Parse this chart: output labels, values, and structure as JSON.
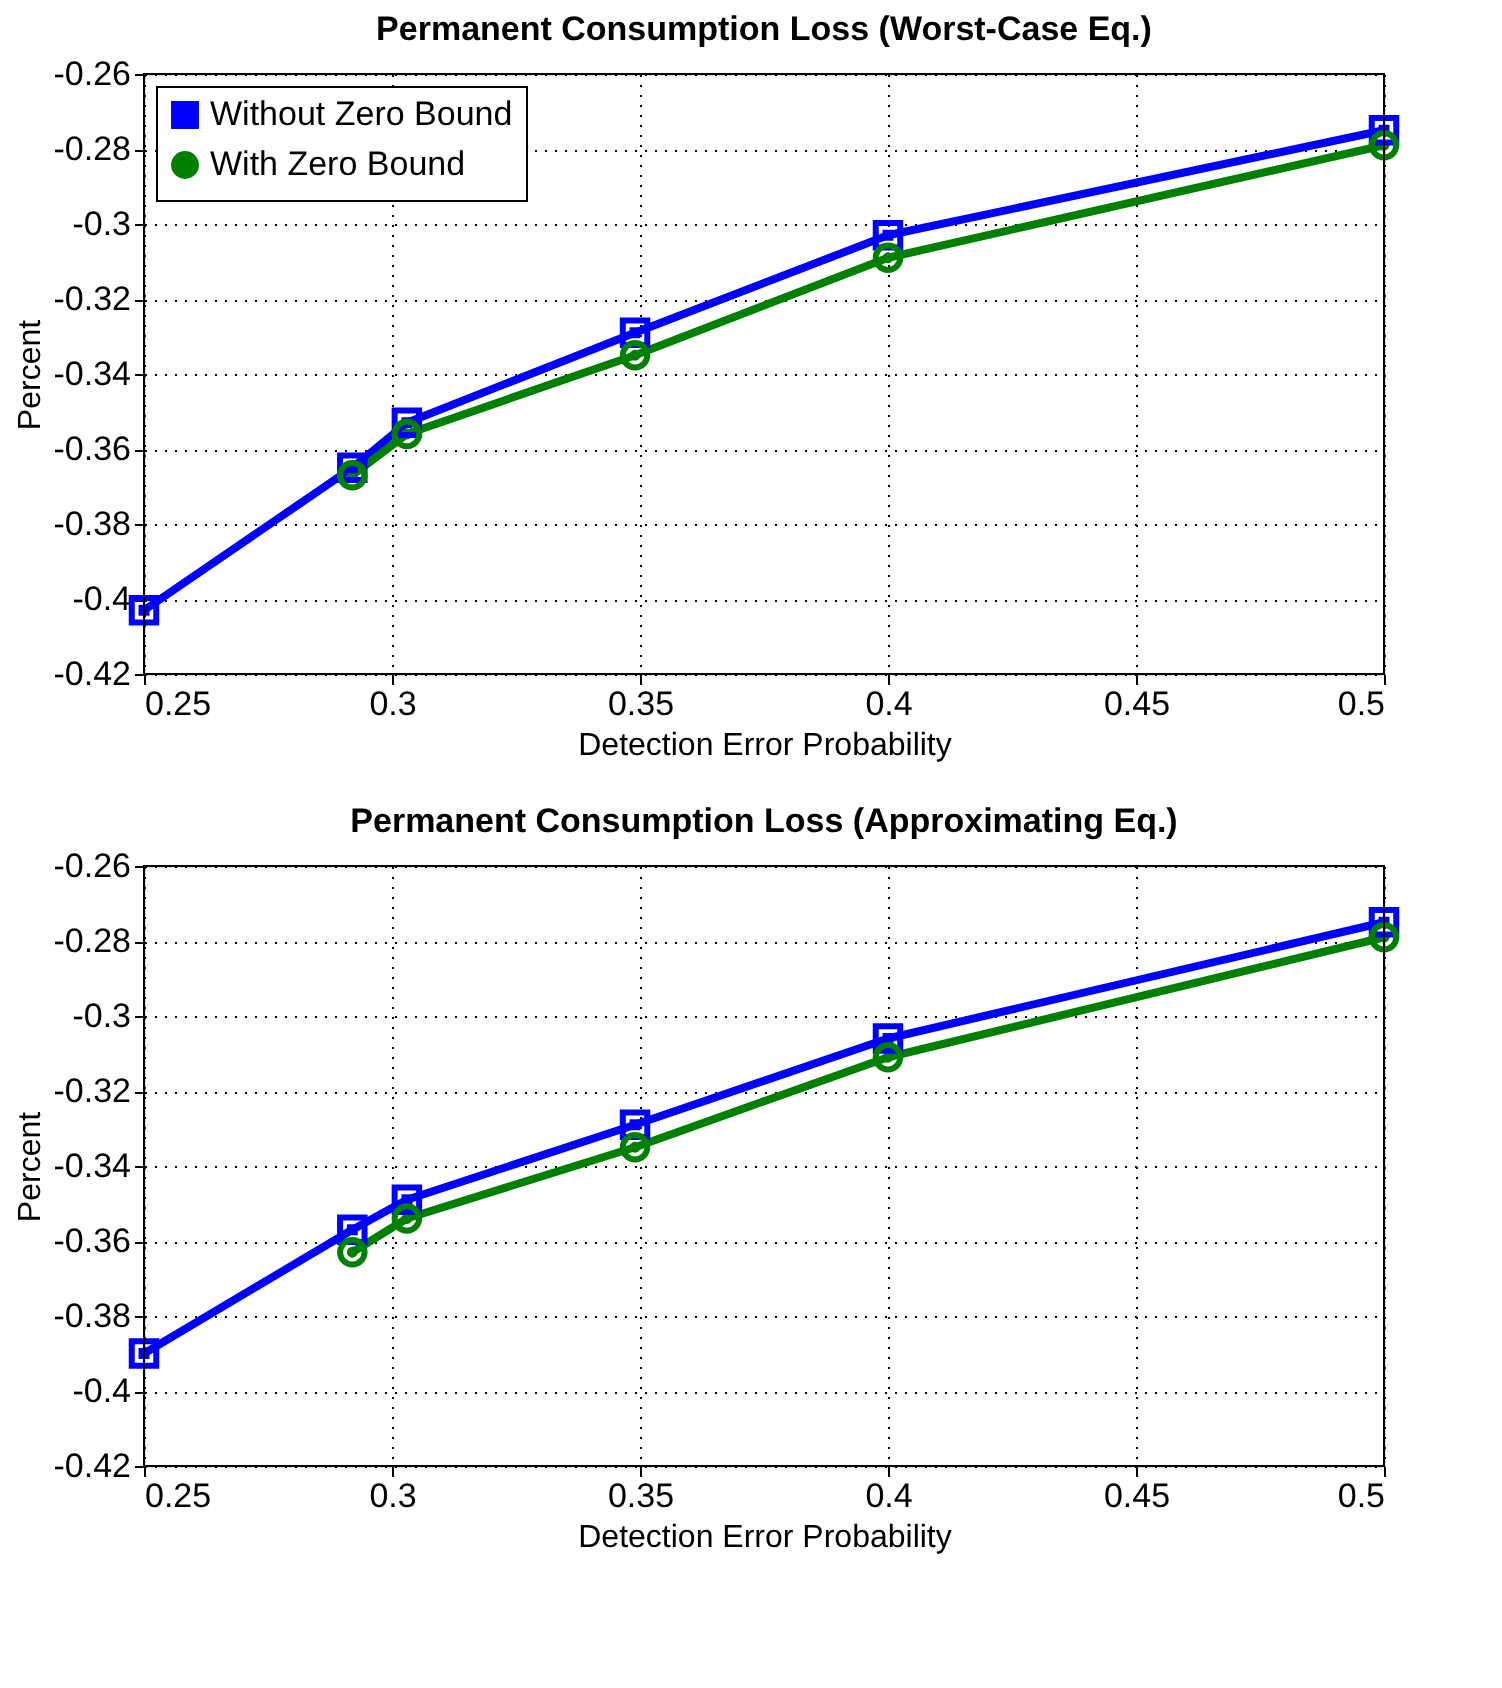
{
  "chart_data": [
    {
      "type": "line",
      "title": "Permanent Consumption Loss (Worst-Case Eq.)",
      "xlabel": "Detection Error Probability",
      "ylabel": "Percent",
      "xlim": [
        0.25,
        0.5
      ],
      "xticks": [
        0.25,
        0.3,
        0.35,
        0.4,
        0.45,
        0.5
      ],
      "ylim": [
        -0.42,
        -0.26
      ],
      "yticks": [
        -0.42,
        -0.4,
        -0.38,
        -0.36,
        -0.34,
        -0.32,
        -0.3,
        -0.28,
        -0.26
      ],
      "grid": true,
      "line_style": "solid",
      "legend": "top left",
      "series": [
        {
          "name": "Without Zero Bound",
          "color": "#0000ff",
          "marker": "square",
          "x": [
            0.25,
            0.292,
            0.303,
            0.349,
            0.4,
            0.5
          ],
          "values": [
            -0.403,
            -0.365,
            -0.353,
            -0.329,
            -0.303,
            -0.275
          ]
        },
        {
          "name": "With Zero Bound",
          "color": "#008000",
          "marker": "circle",
          "x": [
            0.292,
            0.303,
            0.349,
            0.4,
            0.5
          ],
          "values": [
            -0.367,
            -0.356,
            -0.335,
            -0.309,
            -0.279
          ]
        }
      ]
    },
    {
      "type": "line",
      "title": "Permanent Consumption Loss (Approximating Eq.)",
      "xlabel": "Detection Error Probability",
      "ylabel": "Percent",
      "xlim": [
        0.25,
        0.5
      ],
      "xticks": [
        0.25,
        0.3,
        0.35,
        0.4,
        0.45,
        0.5
      ],
      "ylim": [
        -0.42,
        -0.26
      ],
      "yticks": [
        -0.42,
        -0.4,
        -0.38,
        -0.36,
        -0.34,
        -0.32,
        -0.3,
        -0.28,
        -0.26
      ],
      "grid": true,
      "line_style": "solid",
      "series": [
        {
          "color": "#0000ff",
          "marker": "square",
          "x": [
            0.25,
            0.292,
            0.303,
            0.349,
            0.4,
            0.5
          ],
          "values": [
            -0.39,
            -0.357,
            -0.349,
            -0.329,
            -0.306,
            -0.275
          ]
        },
        {
          "color": "#008000",
          "marker": "circle",
          "x": [
            0.292,
            0.303,
            0.349,
            0.4,
            0.5
          ],
          "values": [
            -0.363,
            -0.354,
            -0.335,
            -0.311,
            -0.279
          ]
        }
      ]
    }
  ]
}
